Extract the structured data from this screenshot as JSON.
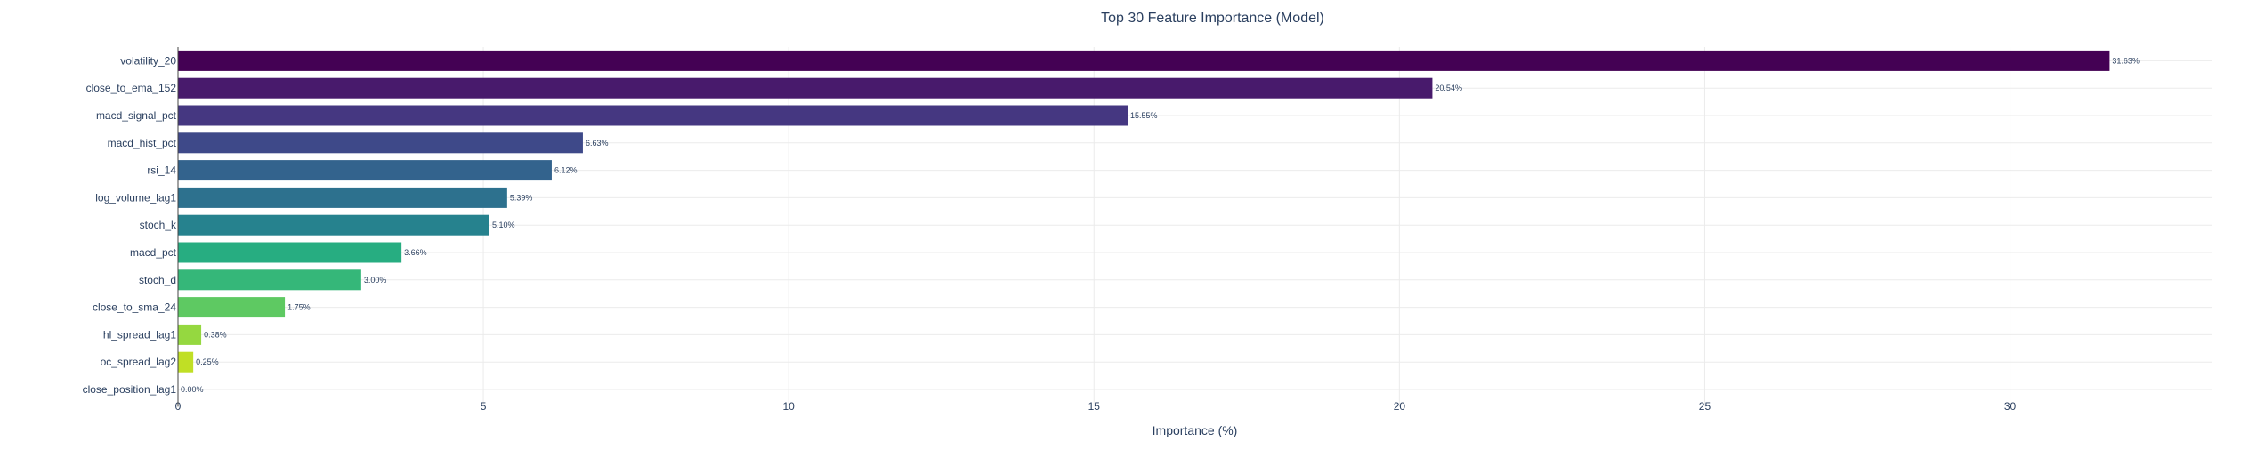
{
  "chart_data": {
    "type": "bar",
    "orientation": "horizontal",
    "title": "Top 30 Feature Importance (Model)",
    "xlabel": "Importance (%)",
    "ylabel": "",
    "xlim": [
      0,
      33.3
    ],
    "xticks": [
      0,
      5,
      10,
      15,
      20,
      25,
      30
    ],
    "grid": true,
    "categories": [
      "volatility_20",
      "close_to_ema_152",
      "macd_signal_pct",
      "macd_hist_pct",
      "rsi_14",
      "log_volume_lag1",
      "stoch_k",
      "macd_pct",
      "stoch_d",
      "close_to_sma_24",
      "hl_spread_lag1",
      "oc_spread_lag2",
      "close_position_lag1"
    ],
    "values": [
      31.63,
      20.54,
      15.55,
      6.63,
      6.12,
      5.39,
      5.1,
      3.66,
      3.0,
      1.75,
      0.38,
      0.25,
      0.0
    ],
    "value_labels": [
      "31.63%",
      "20.54%",
      "15.55%",
      "6.63%",
      "6.12%",
      "5.39%",
      "5.10%",
      "3.66%",
      "3.00%",
      "1.75%",
      "0.38%",
      "0.25%",
      "0.00%"
    ],
    "colors": [
      "#440154",
      "#481a6c",
      "#453781",
      "#3e4989",
      "#33638d",
      "#2d718e",
      "#26828e",
      "#27ad81",
      "#35b779",
      "#5ec962",
      "#95d840",
      "#c0df25",
      "#fde725"
    ]
  }
}
